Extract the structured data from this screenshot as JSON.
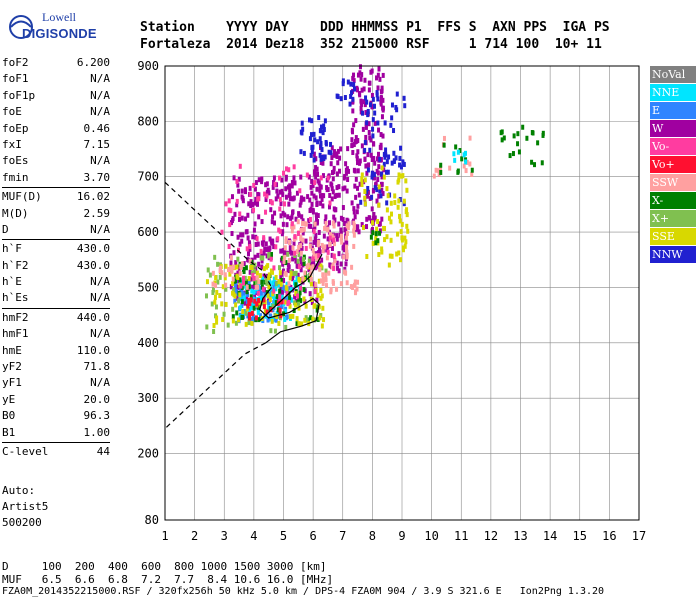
{
  "logo": {
    "line1": "Lowell",
    "line2": "DIGISONDE"
  },
  "header": {
    "row1": "Station    YYYY DAY    DDD HHMMSS P1  FFS S  AXN PPS  IGA PS",
    "row2": "Fortaleza  2014 Dez18  352 215000 RSF     1 714 100  10+ 11"
  },
  "params": {
    "group1": [
      {
        "name": "foF2",
        "value": "6.200"
      },
      {
        "name": "foF1",
        "value": "N/A"
      },
      {
        "name": "foF1p",
        "value": "N/A"
      },
      {
        "name": "foE",
        "value": "N/A"
      },
      {
        "name": "foEp",
        "value": "0.46"
      },
      {
        "name": "fxI",
        "value": "7.15"
      },
      {
        "name": "foEs",
        "value": "N/A"
      },
      {
        "name": "fmin",
        "value": "3.70"
      }
    ],
    "group2": [
      {
        "name": "MUF(D)",
        "value": "16.02"
      },
      {
        "name": "M(D)",
        "value": "2.59"
      },
      {
        "name": "D",
        "value": "N/A"
      }
    ],
    "group3": [
      {
        "name": "h`F",
        "value": "430.0"
      },
      {
        "name": "h`F2",
        "value": "430.0"
      },
      {
        "name": "h`E",
        "value": "N/A"
      },
      {
        "name": "h`Es",
        "value": "N/A"
      }
    ],
    "group4": [
      {
        "name": "hmF2",
        "value": "440.0"
      },
      {
        "name": "hmF1",
        "value": "N/A"
      },
      {
        "name": "hmE",
        "value": "110.0"
      },
      {
        "name": "yF2",
        "value": "71.8"
      },
      {
        "name": "yF1",
        "value": "N/A"
      },
      {
        "name": "yE",
        "value": "20.0"
      },
      {
        "name": "B0",
        "value": "96.3"
      },
      {
        "name": "B1",
        "value": "1.00"
      }
    ],
    "group5": [
      {
        "name": "C-level",
        "value": "44"
      }
    ]
  },
  "auto": {
    "line1": "Auto:",
    "line2": "Artist5",
    "line3": "500200"
  },
  "legend": [
    {
      "label": "NoVal",
      "color": "#808080"
    },
    {
      "label": "NNE",
      "color": "#00e5ff"
    },
    {
      "label": "E",
      "color": "#2f84ff"
    },
    {
      "label": "W",
      "color": "#a000a0"
    },
    {
      "label": "Vo-",
      "color": "#ff3ca0"
    },
    {
      "label": "Vo+",
      "color": "#ff1030"
    },
    {
      "label": "SSW",
      "color": "#ffa0a0"
    },
    {
      "label": "X-",
      "color": "#008000"
    },
    {
      "label": "X+",
      "color": "#80c050"
    },
    {
      "label": "SSE",
      "color": "#d8d800"
    },
    {
      "label": "NNW",
      "color": "#2020d0"
    }
  ],
  "footer": {
    "d_row": "D     100  200  400  600  800 1000 1500 3000 [km]",
    "muf_row": "MUF   6.5  6.6  6.8  7.2  7.7  8.4 10.6 16.0 [MHz]",
    "info": "FZA0M_2014352215000.RSF / 320fx256h 50 kHz 5.0 km / DPS-4 FZA0M 904 / 3.9 S 321.6 E   Ion2Png 1.3.20"
  },
  "chart_data": {
    "type": "scatter",
    "xlim": [
      1,
      17
    ],
    "ylim": [
      80,
      900
    ],
    "xticks": [
      1,
      2,
      3,
      4,
      5,
      6,
      7,
      8,
      9,
      10,
      11,
      12,
      13,
      14,
      15,
      16,
      17
    ],
    "yticks": [
      80,
      200,
      300,
      400,
      500,
      600,
      700,
      800,
      900
    ],
    "grid": true,
    "clusters": [
      {
        "group": "W",
        "color": "#a000a0",
        "x": [
          3.2,
          6.2
        ],
        "y": [
          470,
          700
        ],
        "n": 320
      },
      {
        "group": "W",
        "color": "#a000a0",
        "x": [
          6.0,
          7.2
        ],
        "y": [
          530,
          760
        ],
        "n": 160
      },
      {
        "group": "W",
        "color": "#a000a0",
        "x": [
          7.3,
          8.4
        ],
        "y": [
          600,
          900
        ],
        "n": 180
      },
      {
        "group": "NNW",
        "color": "#2020d0",
        "x": [
          5.5,
          6.6
        ],
        "y": [
          730,
          810
        ],
        "n": 40
      },
      {
        "group": "NNW",
        "color": "#2020d0",
        "x": [
          6.8,
          7.4
        ],
        "y": [
          830,
          880
        ],
        "n": 14
      },
      {
        "group": "NNW",
        "color": "#2020d0",
        "x": [
          7.6,
          9.1
        ],
        "y": [
          650,
          870
        ],
        "n": 70
      },
      {
        "group": "E",
        "color": "#2f84ff",
        "x": [
          3.3,
          5.2
        ],
        "y": [
          440,
          510
        ],
        "n": 90
      },
      {
        "group": "NNE",
        "color": "#00e5ff",
        "x": [
          3.5,
          5.6
        ],
        "y": [
          440,
          520
        ],
        "n": 70
      },
      {
        "group": "X-",
        "color": "#008000",
        "x": [
          3.3,
          6.2
        ],
        "y": [
          430,
          560
        ],
        "n": 70
      },
      {
        "group": "X-",
        "color": "#008000",
        "x": [
          12.2,
          13.8
        ],
        "y": [
          720,
          790
        ],
        "n": 20
      },
      {
        "group": "X+",
        "color": "#80c050",
        "x": [
          2.4,
          6.5
        ],
        "y": [
          420,
          560
        ],
        "n": 70
      },
      {
        "group": "SSE",
        "color": "#d8d800",
        "x": [
          2.4,
          6.4
        ],
        "y": [
          430,
          540
        ],
        "n": 110
      },
      {
        "group": "SSE",
        "color": "#d8d800",
        "x": [
          7.6,
          9.2
        ],
        "y": [
          540,
          720
        ],
        "n": 70
      },
      {
        "group": "SSW",
        "color": "#ffa0a0",
        "x": [
          5.0,
          7.5
        ],
        "y": [
          490,
          620
        ],
        "n": 120
      },
      {
        "group": "SSW",
        "color": "#ffa0a0",
        "x": [
          2.6,
          4.2
        ],
        "y": [
          500,
          560
        ],
        "n": 25
      },
      {
        "group": "Vo-",
        "color": "#ff3ca0",
        "x": [
          2.8,
          6.8
        ],
        "y": [
          470,
          720
        ],
        "n": 80
      },
      {
        "group": "Vo+",
        "color": "#ff1030",
        "x": [
          3.8,
          5.0
        ],
        "y": [
          440,
          480
        ],
        "n": 22
      },
      {
        "group": "SSW",
        "color": "#ffa0a0",
        "x": [
          10.0,
          11.5
        ],
        "y": [
          700,
          770
        ],
        "n": 14
      },
      {
        "group": "X-",
        "color": "#008000",
        "x": [
          10.2,
          11.4
        ],
        "y": [
          700,
          760
        ],
        "n": 10
      },
      {
        "group": "NNE",
        "color": "#00e5ff",
        "x": [
          10.6,
          11.2
        ],
        "y": [
          720,
          750
        ],
        "n": 6
      },
      {
        "group": "X-",
        "color": "#008000",
        "x": [
          7.9,
          8.3
        ],
        "y": [
          580,
          600
        ],
        "n": 6
      }
    ],
    "profile": {
      "dashed": [
        [
          1.0,
          690
        ],
        [
          2.0,
          640
        ],
        [
          3.0,
          590
        ],
        [
          3.8,
          550
        ],
        [
          4.3,
          530
        ],
        [
          4.6,
          500
        ]
      ],
      "solid": [
        [
          4.6,
          500
        ],
        [
          4.3,
          480
        ],
        [
          4.2,
          460
        ],
        [
          4.5,
          445
        ],
        [
          5.2,
          455
        ],
        [
          5.7,
          470
        ],
        [
          6.0,
          480
        ],
        [
          6.2,
          470
        ],
        [
          6.1,
          440
        ],
        [
          5.6,
          430
        ],
        [
          4.9,
          420
        ],
        [
          4.4,
          400
        ]
      ],
      "dashed_lower": [
        [
          4.4,
          400
        ],
        [
          3.7,
          380
        ],
        [
          2.9,
          340
        ],
        [
          2.1,
          300
        ],
        [
          1.0,
          245
        ]
      ]
    },
    "profile_trace": [
      [
        4.2,
        440
      ],
      [
        4.6,
        460
      ],
      [
        5.0,
        480
      ],
      [
        5.4,
        500
      ],
      [
        5.7,
        510
      ],
      [
        5.9,
        520
      ],
      [
        6.1,
        540
      ],
      [
        6.3,
        560
      ]
    ]
  }
}
